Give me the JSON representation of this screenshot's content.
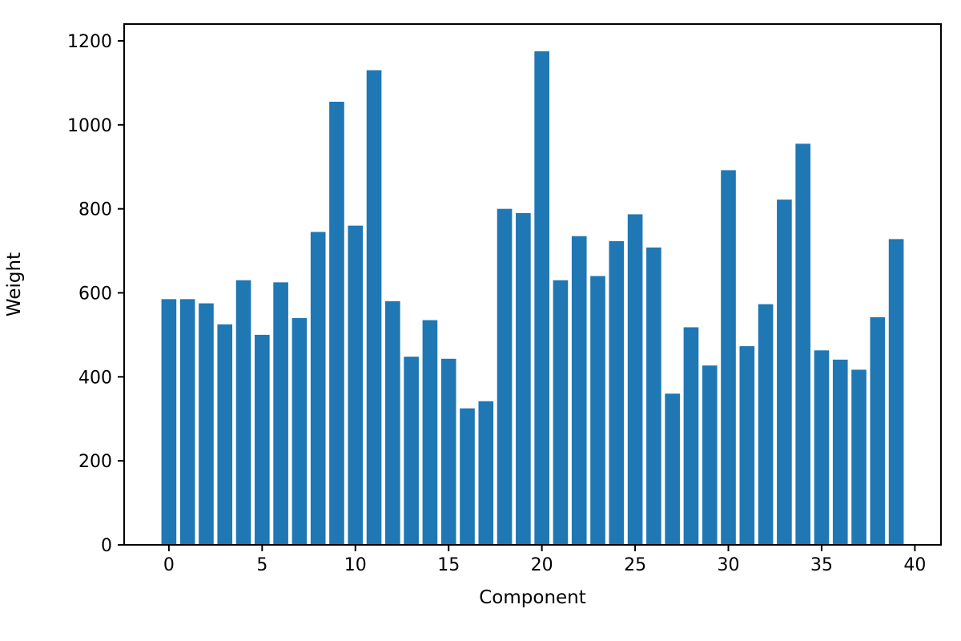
{
  "chart_data": {
    "type": "bar",
    "title": "",
    "xlabel": "Component",
    "ylabel": "Weight",
    "bar_color": "#1f77b4",
    "bar_width": 0.8,
    "grid": false,
    "legend_position": "none",
    "xlim": [
      -2.4,
      41.4
    ],
    "ylim": [
      0,
      1240
    ],
    "xticks": [
      0,
      5,
      10,
      15,
      20,
      25,
      30,
      35,
      40
    ],
    "yticks": [
      0,
      200,
      400,
      600,
      800,
      1000,
      1200
    ],
    "x": [
      0,
      1,
      2,
      3,
      4,
      5,
      6,
      7,
      8,
      9,
      10,
      11,
      12,
      13,
      14,
      15,
      16,
      17,
      18,
      19,
      20,
      21,
      22,
      23,
      24,
      25,
      26,
      27,
      28,
      29,
      30,
      31,
      32,
      33,
      34,
      35,
      36,
      37,
      38,
      39
    ],
    "values": [
      585,
      585,
      575,
      525,
      630,
      500,
      625,
      540,
      745,
      1055,
      760,
      1130,
      580,
      448,
      535,
      443,
      325,
      342,
      800,
      790,
      1175,
      630,
      735,
      640,
      723,
      787,
      708,
      360,
      518,
      427,
      892,
      473,
      573,
      822,
      955,
      463,
      441,
      417,
      542,
      728
    ]
  }
}
